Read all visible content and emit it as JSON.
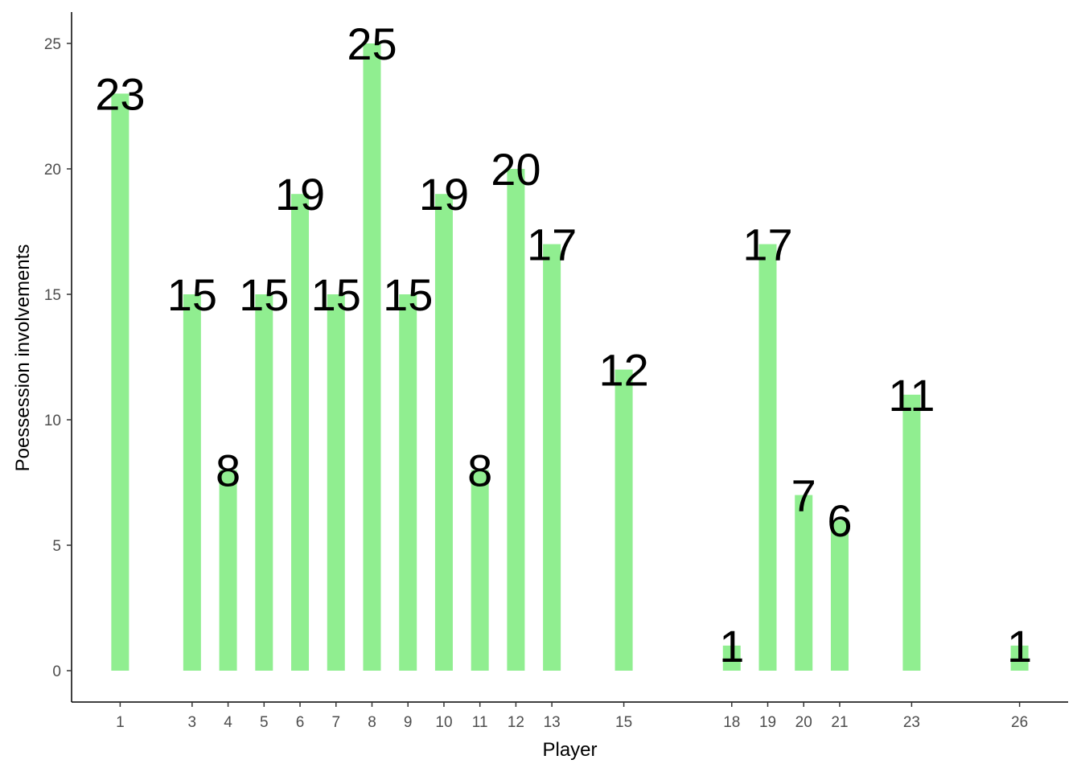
{
  "chart_data": {
    "type": "bar",
    "x": [
      1,
      3,
      4,
      5,
      6,
      7,
      8,
      9,
      10,
      11,
      12,
      13,
      15,
      18,
      19,
      20,
      21,
      23,
      26
    ],
    "values": [
      23,
      15,
      8,
      15,
      19,
      15,
      25,
      15,
      19,
      8,
      20,
      17,
      12,
      1,
      17,
      7,
      6,
      11,
      1
    ],
    "xlabel": "Player",
    "ylabel": "Poessession involvements",
    "x_ticks": [
      1,
      3,
      4,
      5,
      6,
      7,
      8,
      9,
      10,
      11,
      12,
      13,
      15,
      18,
      19,
      20,
      21,
      23,
      26
    ],
    "y_ticks": [
      0,
      5,
      10,
      15,
      20,
      25
    ],
    "xlim": [
      -0.35,
      27.35
    ],
    "ylim": [
      -1.25,
      26.25
    ],
    "bar_color": "#90EE90",
    "grid": false,
    "legend": "none"
  }
}
